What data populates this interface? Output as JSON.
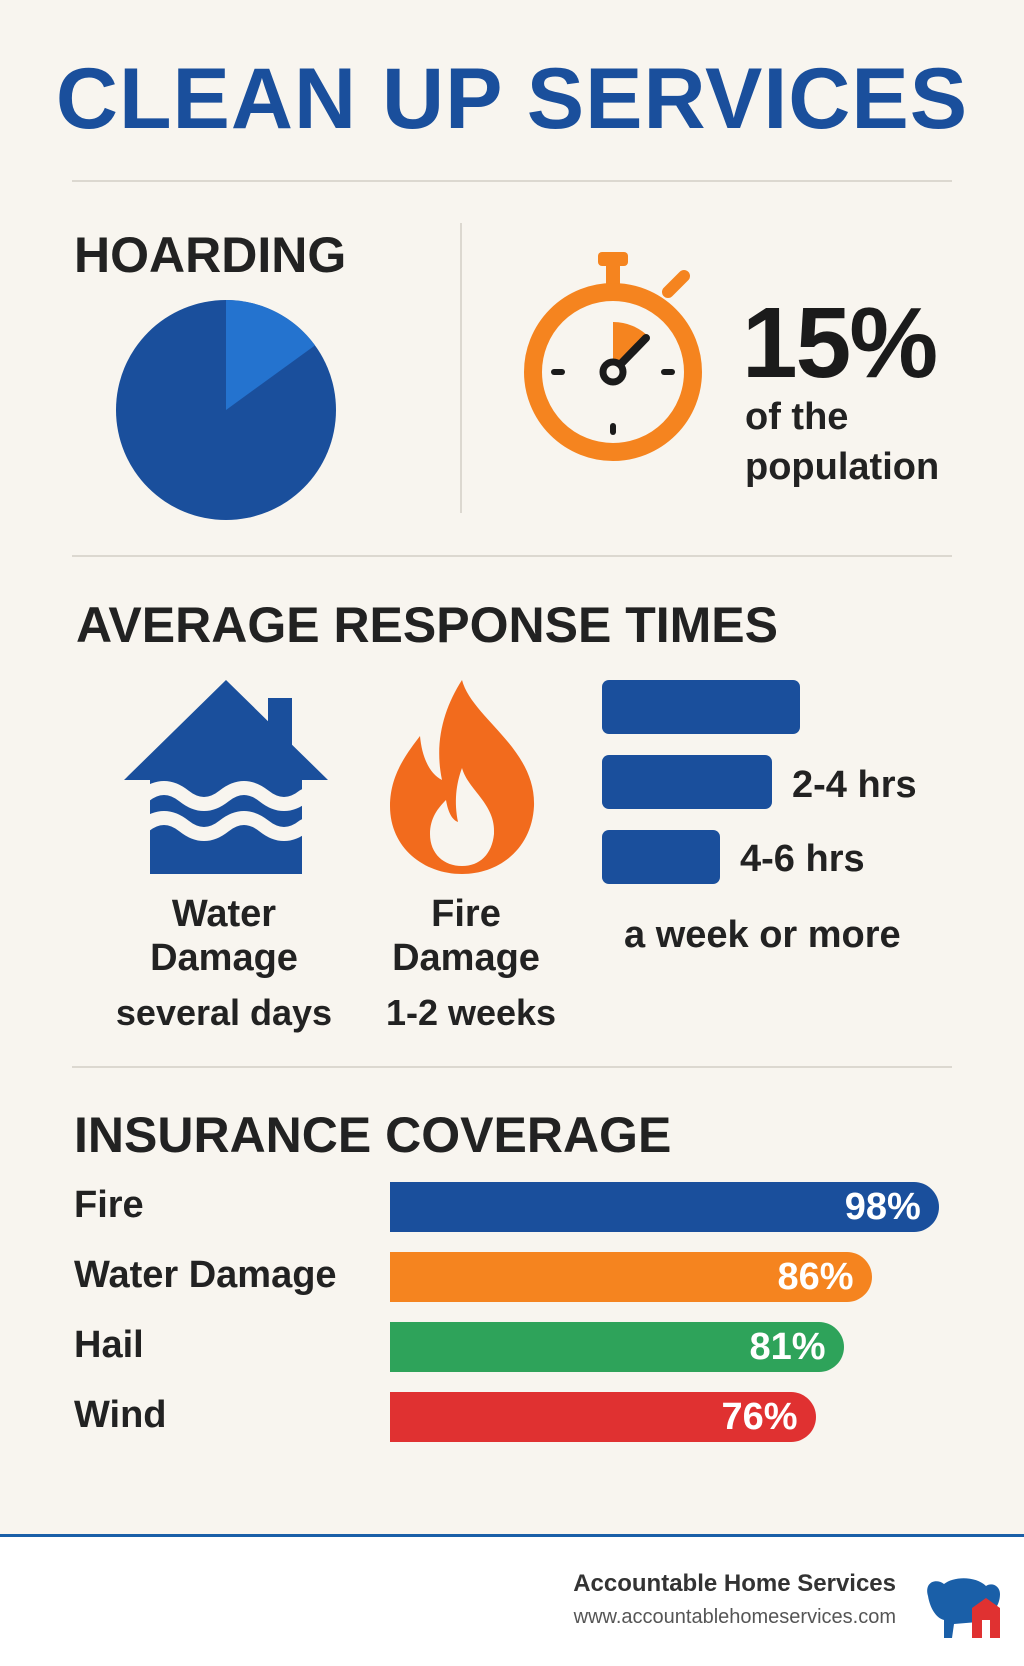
{
  "title": "CLEAN UP SERVICES",
  "hoarding": {
    "heading": "HOARDING",
    "percent_label": "15%",
    "description_line1": "of the",
    "description_line2": "population",
    "colors": {
      "main": "#1a4f9c",
      "slice": "#2473cf",
      "timer": "#f5841f"
    }
  },
  "response": {
    "heading": "AVERAGE RESPONSE TIMES",
    "categories": [
      {
        "line1": "Water",
        "line2": "Damage",
        "sub": "several days",
        "icon": "house-flood-icon"
      },
      {
        "line1": "Fire",
        "line2": "Damage",
        "sub": "1-2 weeks",
        "icon": "flame-icon"
      }
    ],
    "bar_labels": [
      "2-4 hrs",
      "4-6 hrs",
      "a week or more"
    ]
  },
  "insurance": {
    "heading": "INSURANCE COVERAGE"
  },
  "chart_data": [
    {
      "type": "pie",
      "categories": [
        "",
        ""
      ],
      "values": [
        15,
        85
      ],
      "title": "",
      "colors": [
        "#2473cf",
        "#1a4f9c"
      ]
    },
    {
      "type": "bar",
      "orientation": "horizontal",
      "title": "INSURANCE COVERAGE",
      "categories": [
        "Fire",
        "Water Damage",
        "Hail",
        "Wind"
      ],
      "values": [
        98,
        86,
        81,
        76
      ],
      "value_labels": [
        "98%",
        "86%",
        "81%",
        "76%"
      ],
      "colors": [
        "#1a4f9c",
        "#f5841f",
        "#2ea35a",
        "#e03131"
      ],
      "xlim": [
        0,
        100
      ]
    }
  ],
  "footer": {
    "brand": "Accountable Home Services",
    "url": "www.accountablehomeservices.com",
    "logo_icon": "bison-house-logo-icon"
  }
}
